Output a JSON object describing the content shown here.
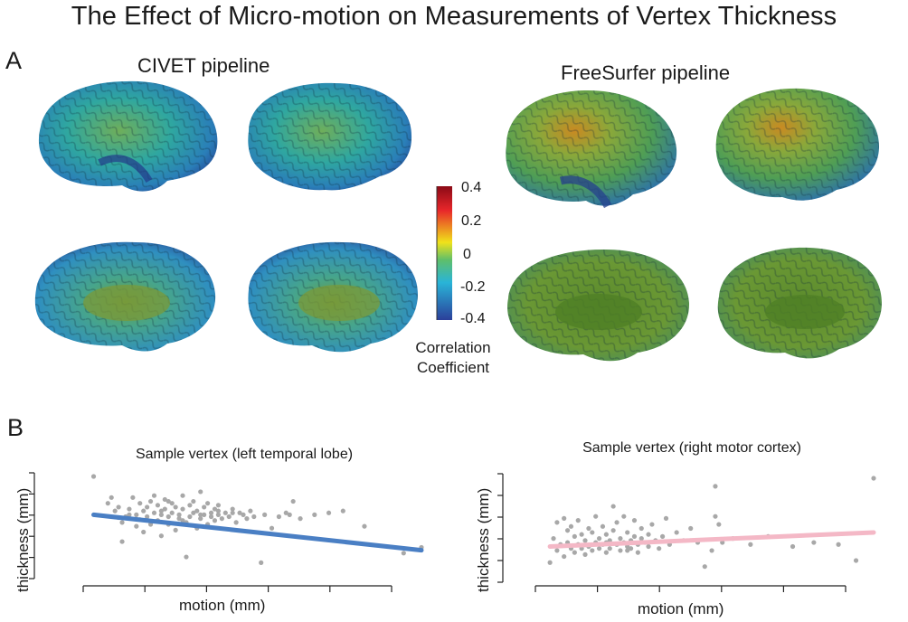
{
  "figure": {
    "title": "The Effect of Micro-motion on Measurements of Vertex Thickness",
    "panel_a_letter": "A",
    "panel_b_letter": "B"
  },
  "panel_a": {
    "civet_title": "CIVET pipeline",
    "freesurfer_title": "FreeSurfer pipeline",
    "colorbar": {
      "ticks": [
        "0.4",
        "0.2",
        "0",
        "-0.2",
        "-0.4"
      ],
      "label_line1": "Correlation",
      "label_line2": "Coefficient",
      "colors": [
        "#8b0a16",
        "#e8262a",
        "#f0e21a",
        "#5fbf6a",
        "#29b4d8",
        "#2b3f9a"
      ]
    }
  },
  "chart_data": [
    {
      "type": "scatter",
      "title": "Sample vertex (left temporal lobe)",
      "xlabel": "motion (mm)",
      "ylabel": "thickness (mm)",
      "tick_labels_shown": false,
      "point_color": "#a8a8a8",
      "fit_color": "#4a7fc4",
      "fit": {
        "x0": 0.08,
        "y0": 0.6,
        "x1": 1.0,
        "y1": 0.23
      },
      "points": [
        [
          0.08,
          1.0
        ],
        [
          0.12,
          0.72
        ],
        [
          0.13,
          0.78
        ],
        [
          0.14,
          0.64
        ],
        [
          0.15,
          0.68
        ],
        [
          0.15,
          0.57
        ],
        [
          0.16,
          0.52
        ],
        [
          0.16,
          0.32
        ],
        [
          0.17,
          0.58
        ],
        [
          0.18,
          0.66
        ],
        [
          0.19,
          0.78
        ],
        [
          0.2,
          0.6
        ],
        [
          0.2,
          0.48
        ],
        [
          0.21,
          0.55
        ],
        [
          0.21,
          0.72
        ],
        [
          0.22,
          0.64
        ],
        [
          0.22,
          0.42
        ],
        [
          0.23,
          0.58
        ],
        [
          0.24,
          0.74
        ],
        [
          0.24,
          0.5
        ],
        [
          0.25,
          0.62
        ],
        [
          0.25,
          0.8
        ],
        [
          0.26,
          0.7
        ],
        [
          0.26,
          0.54
        ],
        [
          0.27,
          0.6
        ],
        [
          0.27,
          0.38
        ],
        [
          0.28,
          0.66
        ],
        [
          0.28,
          0.76
        ],
        [
          0.29,
          0.5
        ],
        [
          0.29,
          0.58
        ],
        [
          0.3,
          0.72
        ],
        [
          0.3,
          0.62
        ],
        [
          0.31,
          0.44
        ],
        [
          0.31,
          0.68
        ],
        [
          0.32,
          0.56
        ],
        [
          0.32,
          0.6
        ],
        [
          0.33,
          0.8
        ],
        [
          0.33,
          0.66
        ],
        [
          0.34,
          0.52
        ],
        [
          0.34,
          0.16
        ],
        [
          0.35,
          0.7
        ],
        [
          0.35,
          0.58
        ],
        [
          0.36,
          0.62
        ],
        [
          0.36,
          0.74
        ],
        [
          0.37,
          0.46
        ],
        [
          0.37,
          0.64
        ],
        [
          0.38,
          0.84
        ],
        [
          0.38,
          0.56
        ],
        [
          0.39,
          0.6
        ],
        [
          0.39,
          0.68
        ],
        [
          0.4,
          0.72
        ],
        [
          0.4,
          0.5
        ],
        [
          0.41,
          0.62
        ],
        [
          0.41,
          0.58
        ],
        [
          0.42,
          0.54
        ],
        [
          0.42,
          0.66
        ],
        [
          0.43,
          0.6
        ],
        [
          0.43,
          0.7
        ],
        [
          0.44,
          0.56
        ],
        [
          0.45,
          0.62
        ],
        [
          0.46,
          0.58
        ],
        [
          0.47,
          0.66
        ],
        [
          0.48,
          0.52
        ],
        [
          0.49,
          0.62
        ],
        [
          0.5,
          0.6
        ],
        [
          0.51,
          0.56
        ],
        [
          0.52,
          0.64
        ],
        [
          0.53,
          0.58
        ],
        [
          0.55,
          0.1
        ],
        [
          0.56,
          0.6
        ],
        [
          0.58,
          0.46
        ],
        [
          0.6,
          0.58
        ],
        [
          0.62,
          0.62
        ],
        [
          0.63,
          0.6
        ],
        [
          0.64,
          0.74
        ],
        [
          0.66,
          0.56
        ],
        [
          0.7,
          0.6
        ],
        [
          0.74,
          0.62
        ],
        [
          0.78,
          0.64
        ],
        [
          0.84,
          0.48
        ],
        [
          0.95,
          0.2
        ],
        [
          1.0,
          0.26
        ],
        [
          0.43,
          0.64
        ],
        [
          0.38,
          0.6
        ],
        [
          0.29,
          0.74
        ],
        [
          0.23,
          0.68
        ],
        [
          0.18,
          0.6
        ],
        [
          0.47,
          0.62
        ],
        [
          0.33,
          0.54
        ],
        [
          0.27,
          0.64
        ]
      ]
    },
    {
      "type": "scatter",
      "title": "Sample vertex (right motor cortex)",
      "xlabel": "motion (mm)",
      "ylabel": "thickness (mm)",
      "tick_labels_shown": false,
      "point_color": "#a8a8a8",
      "fit_color": "#f4b8c6",
      "fit": {
        "x0": 0.08,
        "y0": 0.32,
        "x1": 1.0,
        "y1": 0.46
      },
      "points": [
        [
          0.08,
          0.16
        ],
        [
          0.09,
          0.4
        ],
        [
          0.1,
          0.28
        ],
        [
          0.1,
          0.56
        ],
        [
          0.11,
          0.34
        ],
        [
          0.12,
          0.6
        ],
        [
          0.12,
          0.22
        ],
        [
          0.13,
          0.48
        ],
        [
          0.13,
          0.36
        ],
        [
          0.14,
          0.3
        ],
        [
          0.14,
          0.52
        ],
        [
          0.15,
          0.26
        ],
        [
          0.15,
          0.42
        ],
        [
          0.16,
          0.34
        ],
        [
          0.16,
          0.58
        ],
        [
          0.17,
          0.3
        ],
        [
          0.17,
          0.44
        ],
        [
          0.18,
          0.24
        ],
        [
          0.18,
          0.38
        ],
        [
          0.19,
          0.5
        ],
        [
          0.19,
          0.32
        ],
        [
          0.2,
          0.28
        ],
        [
          0.2,
          0.46
        ],
        [
          0.21,
          0.36
        ],
        [
          0.21,
          0.62
        ],
        [
          0.22,
          0.3
        ],
        [
          0.22,
          0.4
        ],
        [
          0.23,
          0.34
        ],
        [
          0.23,
          0.52
        ],
        [
          0.24,
          0.26
        ],
        [
          0.24,
          0.44
        ],
        [
          0.25,
          0.38
        ],
        [
          0.25,
          0.3
        ],
        [
          0.26,
          0.48
        ],
        [
          0.26,
          0.72
        ],
        [
          0.27,
          0.34
        ],
        [
          0.27,
          0.56
        ],
        [
          0.28,
          0.28
        ],
        [
          0.28,
          0.4
        ],
        [
          0.29,
          0.36
        ],
        [
          0.29,
          0.62
        ],
        [
          0.3,
          0.32
        ],
        [
          0.3,
          0.46
        ],
        [
          0.31,
          0.38
        ],
        [
          0.31,
          0.3
        ],
        [
          0.32,
          0.42
        ],
        [
          0.32,
          0.58
        ],
        [
          0.33,
          0.34
        ],
        [
          0.33,
          0.26
        ],
        [
          0.34,
          0.4
        ],
        [
          0.34,
          0.5
        ],
        [
          0.35,
          0.36
        ],
        [
          0.36,
          0.44
        ],
        [
          0.36,
          0.32
        ],
        [
          0.37,
          0.54
        ],
        [
          0.38,
          0.38
        ],
        [
          0.39,
          0.3
        ],
        [
          0.4,
          0.42
        ],
        [
          0.41,
          0.6
        ],
        [
          0.42,
          0.34
        ],
        [
          0.44,
          0.46
        ],
        [
          0.46,
          0.38
        ],
        [
          0.48,
          0.5
        ],
        [
          0.5,
          0.36
        ],
        [
          0.52,
          0.12
        ],
        [
          0.54,
          0.28
        ],
        [
          0.55,
          0.62
        ],
        [
          0.55,
          0.92
        ],
        [
          0.57,
          0.36
        ],
        [
          0.56,
          0.54
        ],
        [
          0.6,
          0.4
        ],
        [
          0.65,
          0.34
        ],
        [
          0.7,
          0.42
        ],
        [
          0.77,
          0.32
        ],
        [
          0.83,
          0.36
        ],
        [
          0.9,
          0.34
        ],
        [
          0.95,
          0.18
        ],
        [
          1.0,
          1.0
        ],
        [
          0.24,
          0.36
        ],
        [
          0.3,
          0.28
        ]
      ]
    }
  ]
}
